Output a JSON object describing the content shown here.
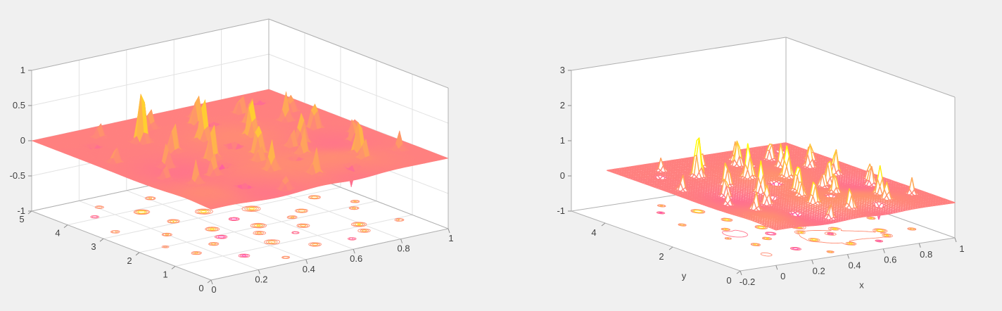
{
  "figure": {
    "background": "#f0f0f0",
    "wall_color": "#ffffff"
  },
  "chart_data": [
    {
      "type": "surface",
      "subtype": "surfc-surface-with-floor-contours",
      "title": "",
      "xlabel": "",
      "ylabel": "",
      "zlabel": "",
      "xlim": [
        0,
        1
      ],
      "ylim": [
        0,
        5
      ],
      "zlim": [
        -1,
        1
      ],
      "xticks": [
        "0",
        "0.2",
        "0.4",
        "0.6",
        "0.8",
        "1"
      ],
      "yticks": [
        "0",
        "1",
        "2",
        "3",
        "4",
        "5"
      ],
      "zticks": [
        "-1",
        "-0.5",
        "0",
        "0.5",
        "1"
      ],
      "grid": true,
      "legend": false,
      "colormap": "spring",
      "caxis": [
        -0.6,
        0.6
      ],
      "base_level": 0,
      "surface_domain": {
        "x": [
          0,
          1
        ],
        "y": [
          0,
          5
        ]
      },
      "peaks": [
        [
          0.29,
          3.85,
          0.85,
          0.016
        ],
        [
          0.2,
          2.55,
          0.4,
          0.014
        ],
        [
          0.36,
          2.35,
          0.6,
          0.015
        ],
        [
          0.33,
          1.9,
          -0.5,
          0.014
        ],
        [
          0.46,
          3.25,
          0.65,
          0.016
        ],
        [
          0.51,
          2.05,
          0.55,
          0.015
        ],
        [
          0.43,
          1.15,
          0.45,
          0.014
        ],
        [
          0.56,
          4.1,
          0.5,
          0.015
        ],
        [
          0.61,
          2.9,
          0.6,
          0.016
        ],
        [
          0.63,
          1.6,
          0.4,
          0.013
        ],
        [
          0.71,
          3.6,
          0.45,
          0.014
        ],
        [
          0.73,
          2.3,
          0.5,
          0.015
        ],
        [
          0.79,
          1.1,
          0.55,
          0.015
        ],
        [
          0.86,
          2.8,
          0.5,
          0.014
        ],
        [
          0.89,
          1.9,
          0.4,
          0.013
        ],
        [
          0.15,
          1.4,
          0.35,
          0.013
        ],
        [
          0.26,
          0.8,
          -0.35,
          0.013
        ],
        [
          0.53,
          0.6,
          0.4,
          0.013
        ],
        [
          0.67,
          0.5,
          -0.3,
          0.012
        ],
        [
          0.91,
          3.8,
          0.35,
          0.013
        ],
        [
          0.08,
          3.2,
          0.3,
          0.012
        ],
        [
          0.41,
          4.4,
          0.35,
          0.013
        ],
        [
          0.59,
          3.9,
          -0.4,
          0.013
        ],
        [
          0.76,
          4.2,
          0.4,
          0.013
        ],
        [
          0.21,
          4.5,
          0.25,
          0.012
        ],
        [
          0.49,
          2.6,
          -0.55,
          0.014
        ],
        [
          0.31,
          3.1,
          0.5,
          0.014
        ],
        [
          0.66,
          2.1,
          0.35,
          0.012
        ],
        [
          0.83,
          3.4,
          0.45,
          0.013
        ],
        [
          0.11,
          2.0,
          0.25,
          0.012
        ],
        [
          0.36,
          0.3,
          0.3,
          0.012
        ],
        [
          0.56,
          1.35,
          -0.35,
          0.012
        ],
        [
          0.76,
          0.75,
          0.35,
          0.012
        ],
        [
          0.93,
          0.9,
          0.3,
          0.012
        ],
        [
          0.46,
          1.7,
          0.35,
          0.012
        ],
        [
          0.26,
          1.65,
          0.4,
          0.013
        ],
        [
          0.61,
          4.45,
          0.35,
          0.012
        ],
        [
          0.88,
          4.5,
          -0.3,
          0.012
        ],
        [
          0.13,
          4.1,
          -0.25,
          0.012
        ],
        [
          0.94,
          2.2,
          0.35,
          0.012
        ]
      ],
      "broad_bumps": [
        [
          0.45,
          1.0,
          0.06,
          0.2
        ],
        [
          0.3,
          0.45,
          -0.06,
          0.16
        ],
        [
          0.7,
          0.85,
          0.05,
          0.15
        ],
        [
          0.2,
          2.2,
          -0.05,
          0.14
        ],
        [
          0.55,
          3.0,
          0.05,
          0.18
        ],
        [
          0.8,
          1.95,
          -0.045,
          0.13
        ],
        [
          0.1,
          0.7,
          0.05,
          0.12
        ],
        [
          0.62,
          0.25,
          -0.05,
          0.12
        ]
      ],
      "contour_levels": [
        -0.25,
        -0.12,
        -0.06,
        0.06,
        0.12,
        0.25,
        0.45
      ]
    },
    {
      "type": "surface",
      "subtype": "meshc-mesh-with-floor-contours",
      "title": "",
      "xlabel": "x",
      "ylabel": "y",
      "zlabel": "",
      "xlim": [
        -0.2,
        1
      ],
      "ylim": [
        0,
        5
      ],
      "zlim": [
        -1,
        3
      ],
      "xticks": [
        "-0.2",
        "0",
        "0.2",
        "0.4",
        "0.6",
        "0.8",
        "1"
      ],
      "yticks": [
        "0",
        "2",
        "4"
      ],
      "zticks": [
        "-1",
        "0",
        "1",
        "2",
        "3"
      ],
      "grid": false,
      "legend": false,
      "colormap": "spring",
      "caxis": [
        -0.6,
        0.6
      ],
      "base_level": 0,
      "amp_scale": 1.5,
      "data_ref": 0,
      "contour_levels": [
        -0.25,
        -0.12,
        -0.06,
        0.06,
        0.12,
        0.25,
        0.45
      ]
    }
  ]
}
